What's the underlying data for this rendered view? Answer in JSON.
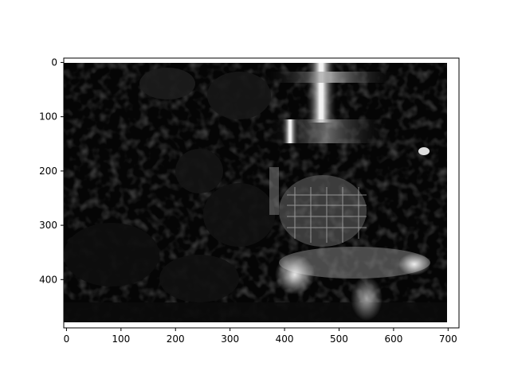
{
  "chart_data": {
    "type": "heatmap",
    "title": "",
    "xlabel": "",
    "ylabel": "",
    "colormap": "gray",
    "image_extent": {
      "width": 696,
      "height": 489
    },
    "xlim": [
      -5,
      720
    ],
    "ylim": [
      489,
      -8
    ],
    "y_inverted": true,
    "xticks": [
      0,
      100,
      200,
      300,
      400,
      500,
      600,
      700
    ],
    "yticks": [
      0,
      100,
      200,
      300,
      400
    ],
    "xtick_labels": [
      "0",
      "100",
      "200",
      "300",
      "400",
      "500",
      "600",
      "700"
    ],
    "ytick_labels": [
      "0",
      "100",
      "200",
      "300",
      "400"
    ],
    "grid": false,
    "legend": "none",
    "bright_regions": [
      {
        "x": [
          420,
          480
        ],
        "y": [
          10,
          150
        ],
        "level": 0.95
      },
      {
        "x": [
          340,
          520
        ],
        "y": [
          150,
          200
        ],
        "level": 0.55
      },
      {
        "x": [
          350,
          480
        ],
        "y": [
          200,
          360
        ],
        "level": 0.5
      },
      {
        "x": [
          400,
          560
        ],
        "y": [
          300,
          470
        ],
        "level": 0.7
      }
    ]
  }
}
